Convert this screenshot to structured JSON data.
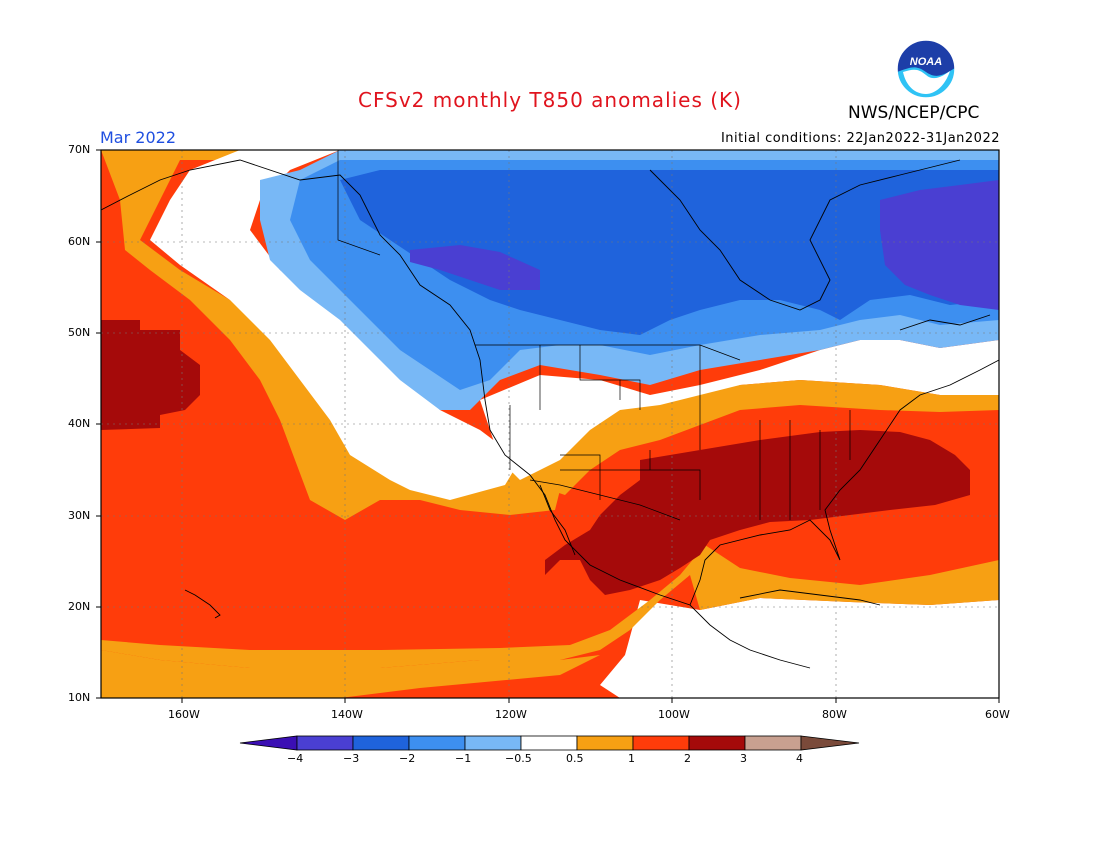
{
  "title": "CFSv2 monthly T850 anomalies (K)",
  "period": "Mar 2022",
  "initial_conditions": "Initial conditions: 22Jan2022-31Jan2022",
  "agency": "NWS/NCEP/CPC",
  "logo_text": "NOAA",
  "lat_labels": [
    "70N",
    "60N",
    "50N",
    "40N",
    "30N",
    "20N",
    "10N"
  ],
  "lon_labels": [
    "160W",
    "140W",
    "120W",
    "100W",
    "80W",
    "60W"
  ],
  "legend": {
    "ticks": [
      "−4",
      "−3",
      "−2",
      "−1",
      "−0.5",
      "0.5",
      "1",
      "2",
      "3",
      "4"
    ],
    "colors": [
      "#3b0fb4",
      "#4a3fd2",
      "#1f63dc",
      "#3d8ff0",
      "#78b8f6",
      "#ffffff",
      "#f7a013",
      "#ff3c0a",
      "#a50a0a",
      "#c8a090",
      "#7a4a3a"
    ]
  },
  "colors": {
    "dark_red": "#a50a0a",
    "red": "#ff3c0a",
    "orange": "#f7a013",
    "white": "#ffffff",
    "light_blue": "#78b8f6",
    "blue": "#3d8ff0",
    "mid_blue": "#1f63dc",
    "purple": "#4a3fd2"
  }
}
